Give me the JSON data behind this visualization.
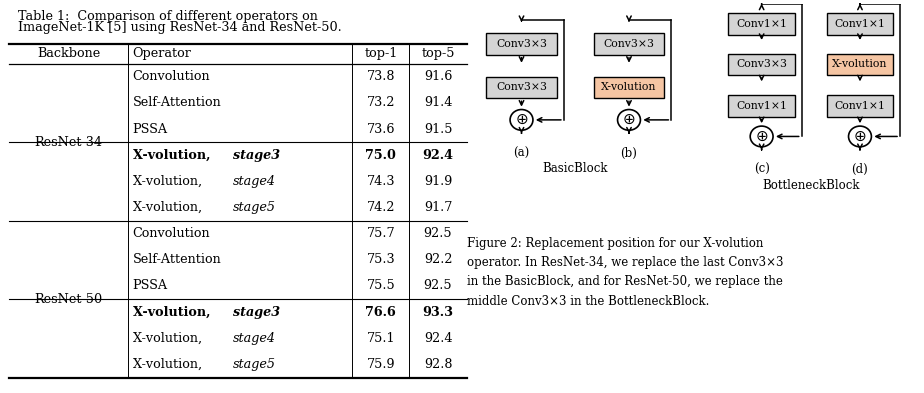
{
  "title_line1": "Table 1:  Comparison of different operators on",
  "title_line2": "ImageNet-1K [5] using ResNet-34 and ResNet-50.",
  "col_headers": [
    "Backbone",
    "Operator",
    "top-1",
    "top-5"
  ],
  "rows": [
    {
      "backbone": "ResNet-34",
      "operator": "Convolution",
      "top1": "73.8",
      "top5": "91.6",
      "bold": false,
      "divider_before": false,
      "backbone_divider": false
    },
    {
      "backbone": "",
      "operator": "Self-Attention",
      "top1": "73.2",
      "top5": "91.4",
      "bold": false,
      "divider_before": false,
      "backbone_divider": false
    },
    {
      "backbone": "",
      "operator": "PSSA",
      "top1": "73.6",
      "top5": "91.5",
      "bold": false,
      "divider_before": false,
      "backbone_divider": false
    },
    {
      "backbone": "",
      "operator": "X-volution, stage3",
      "top1": "75.0",
      "top5": "92.4",
      "bold": true,
      "divider_before": true,
      "backbone_divider": false
    },
    {
      "backbone": "",
      "operator": "X-volution, stage4",
      "top1": "74.3",
      "top5": "91.9",
      "bold": false,
      "divider_before": false,
      "backbone_divider": false
    },
    {
      "backbone": "",
      "operator": "X-volution, stage5",
      "top1": "74.2",
      "top5": "91.7",
      "bold": false,
      "divider_before": false,
      "backbone_divider": false
    },
    {
      "backbone": "ResNet-50",
      "operator": "Convolution",
      "top1": "75.7",
      "top5": "92.5",
      "bold": false,
      "divider_before": true,
      "backbone_divider": true
    },
    {
      "backbone": "",
      "operator": "Self-Attention",
      "top1": "75.3",
      "top5": "92.2",
      "bold": false,
      "divider_before": false,
      "backbone_divider": false
    },
    {
      "backbone": "",
      "operator": "PSSA",
      "top1": "75.5",
      "top5": "92.5",
      "bold": false,
      "divider_before": false,
      "backbone_divider": false
    },
    {
      "backbone": "",
      "operator": "X-volution, stage3",
      "top1": "76.6",
      "top5": "93.3",
      "bold": true,
      "divider_before": true,
      "backbone_divider": false
    },
    {
      "backbone": "",
      "operator": "X-volution, stage4",
      "top1": "75.1",
      "top5": "92.4",
      "bold": false,
      "divider_before": false,
      "backbone_divider": false
    },
    {
      "backbone": "",
      "operator": "X-volution, stage5",
      "top1": "75.9",
      "top5": "92.8",
      "bold": false,
      "divider_before": false,
      "backbone_divider": false
    }
  ],
  "box_gray": "#d4d4d4",
  "box_orange": "#f5c5a3",
  "ref_color": "#2e8b00",
  "figure_caption_parts": [
    {
      "text": "Figure 2: Replacement position for our X-volution\noperator. In ResNet-34, we replace the last ",
      "mono": false
    },
    {
      "text": "Conv3×3",
      "mono": true
    },
    {
      "text": "\nin the BasicBlock, and for ResNet-50, we replace the\nmiddle ",
      "mono": false
    },
    {
      "text": "Conv3×3",
      "mono": true
    },
    {
      "text": " in the BottleneckBlock.",
      "mono": false
    }
  ],
  "block_label_left": "BasicBlock",
  "block_label_right": "BottleneckBlock"
}
